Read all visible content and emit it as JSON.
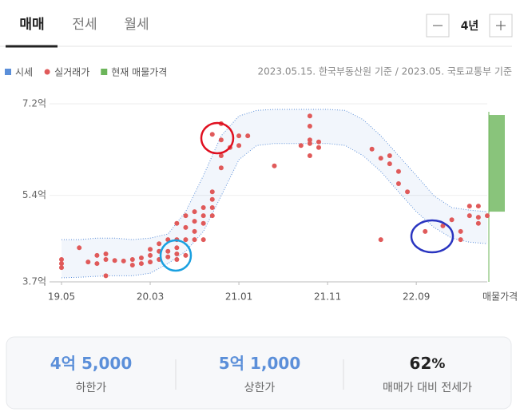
{
  "tabs": [
    "매매",
    "전세",
    "월세"
  ],
  "period": "4년",
  "source": "2023.05.15. 한국부동산원 기준 / 2023.05. 국토교통부 기준",
  "chart_data": {
    "type": "scatter",
    "xlim": [
      "19.05",
      "23.05"
    ],
    "xticks": [
      "19.05",
      "20.03",
      "21.01",
      "21.11",
      "22.09"
    ],
    "ylim": [
      3.7,
      7.2
    ],
    "yticks": [
      {
        "value": 3.7,
        "label": "3.7억"
      },
      {
        "value": 5.4,
        "label": "5.4억"
      },
      {
        "value": 7.2,
        "label": "7.2억"
      }
    ],
    "band": {
      "name": "시세",
      "color": "#5b8fd9",
      "x": [
        "19.05",
        "19.07",
        "19.09",
        "19.11",
        "20.01",
        "20.03",
        "20.05",
        "20.07",
        "20.09",
        "20.11",
        "21.01",
        "21.03",
        "21.05",
        "21.07",
        "21.09",
        "21.11",
        "22.01",
        "22.03",
        "22.05",
        "22.07",
        "22.09",
        "22.11",
        "23.01",
        "23.03",
        "23.05"
      ],
      "upper": [
        4.53,
        4.53,
        4.56,
        4.56,
        4.53,
        4.56,
        4.64,
        5.08,
        5.79,
        6.57,
        6.96,
        7.07,
        7.09,
        7.09,
        7.09,
        7.09,
        7.07,
        6.89,
        6.57,
        6.18,
        5.79,
        5.39,
        5.16,
        5.11,
        5.08
      ],
      "lower": [
        3.78,
        3.79,
        3.81,
        3.82,
        3.82,
        3.87,
        4.06,
        4.3,
        4.69,
        5.39,
        6.1,
        6.38,
        6.42,
        6.42,
        6.42,
        6.42,
        6.38,
        6.18,
        5.87,
        5.47,
        5.08,
        4.77,
        4.56,
        4.48,
        4.45
      ]
    },
    "series": [
      {
        "name": "실거래가",
        "color": "#e05a5a",
        "x": [
          "19.05",
          "19.05",
          "19.05",
          "19.07",
          "19.08",
          "19.09",
          "19.09",
          "19.10",
          "19.10",
          "19.10",
          "19.11",
          "19.12",
          "20.01",
          "20.01",
          "20.02",
          "20.02",
          "20.03",
          "20.03",
          "20.03",
          "20.04",
          "20.04",
          "20.04",
          "20.05",
          "20.05",
          "20.05",
          "20.06",
          "20.06",
          "20.06",
          "20.06",
          "20.06",
          "20.07",
          "20.07",
          "20.07",
          "20.07",
          "20.08",
          "20.08",
          "20.08",
          "20.08",
          "20.09",
          "20.09",
          "20.09",
          "20.09",
          "20.10",
          "20.10",
          "20.10",
          "20.10",
          "20.10",
          "20.11",
          "20.11",
          "20.11",
          "20.11",
          "20.12",
          "21.01",
          "21.01",
          "21.02",
          "21.05",
          "21.08",
          "21.09",
          "21.09",
          "21.09",
          "21.09",
          "21.09",
          "21.10",
          "21.10",
          "22.04",
          "22.05",
          "22.05",
          "22.06",
          "22.06",
          "22.07",
          "22.07",
          "22.08",
          "22.10",
          "22.12",
          "23.01",
          "23.02",
          "23.02",
          "23.03",
          "23.03",
          "23.04",
          "23.04",
          "23.04",
          "23.05"
        ],
        "values": [
          4.14,
          4.06,
          3.98,
          4.37,
          4.09,
          4.22,
          4.06,
          4.25,
          4.14,
          3.82,
          4.12,
          4.11,
          4.14,
          4.03,
          4.17,
          4.06,
          4.34,
          4.22,
          4.09,
          4.45,
          4.3,
          4.14,
          4.53,
          4.3,
          4.19,
          4.85,
          4.53,
          4.37,
          4.25,
          4.14,
          5.0,
          4.77,
          4.53,
          4.22,
          5.08,
          4.89,
          4.69,
          4.53,
          5.16,
          5.0,
          4.85,
          4.53,
          6.6,
          5.47,
          5.32,
          5.16,
          5.0,
          6.81,
          6.49,
          6.18,
          5.94,
          6.34,
          6.57,
          6.38,
          6.57,
          5.98,
          6.38,
          6.96,
          6.76,
          6.49,
          6.42,
          6.18,
          6.45,
          6.34,
          6.31,
          6.13,
          4.53,
          6.18,
          6.02,
          5.87,
          5.63,
          5.47,
          4.69,
          4.8,
          4.92,
          4.69,
          4.53,
          5.19,
          5.0,
          5.19,
          4.97,
          4.85,
          5.0
        ]
      }
    ],
    "listing": {
      "name": "현재 매물가격",
      "category": "매물가격",
      "color": "#6cb55a",
      "low": 5.08,
      "high": 6.98
    }
  },
  "summary": [
    {
      "value": "4억 5,000",
      "label": "하한가"
    },
    {
      "value": "5억 1,000",
      "label": "상한가"
    },
    {
      "value": "62",
      "unit": "%",
      "label": "매매가 대비 전세가"
    }
  ]
}
